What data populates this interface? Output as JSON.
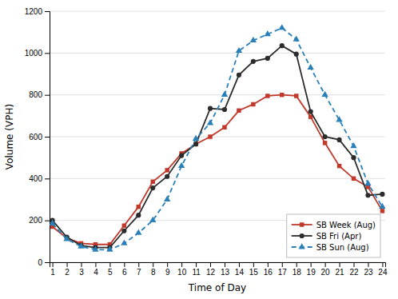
{
  "chart_data": {
    "type": "line",
    "xlabel": "Time of Day",
    "ylabel": "Volume (VPH)",
    "x": [
      1,
      2,
      3,
      4,
      5,
      6,
      7,
      8,
      9,
      10,
      11,
      12,
      13,
      14,
      15,
      16,
      17,
      18,
      19,
      20,
      21,
      22,
      23,
      24
    ],
    "series": [
      {
        "name": "SB Week (Aug)",
        "color": "#c0392b",
        "marker": "square",
        "line_style": "solid",
        "values": [
          170,
          115,
          90,
          85,
          85,
          175,
          265,
          385,
          440,
          520,
          565,
          600,
          645,
          725,
          755,
          795,
          800,
          795,
          695,
          570,
          460,
          400,
          360,
          245
        ]
      },
      {
        "name": "SB Fri (Apr)",
        "color": "#2c2c2c",
        "marker": "circle",
        "line_style": "solid",
        "values": [
          200,
          120,
          80,
          70,
          70,
          150,
          225,
          355,
          410,
          510,
          565,
          735,
          730,
          895,
          960,
          975,
          1035,
          995,
          720,
          600,
          585,
          500,
          320,
          325
        ]
      },
      {
        "name": "SB Sun (Aug)",
        "color": "#2980b9",
        "marker": "triangle",
        "line_style": "dashed",
        "values": [
          185,
          110,
          75,
          60,
          60,
          90,
          140,
          200,
          300,
          460,
          590,
          665,
          800,
          1010,
          1060,
          1090,
          1120,
          1065,
          930,
          800,
          680,
          555,
          375,
          265
        ]
      }
    ],
    "xlim": [
      0.8,
      24.2
    ],
    "xticks": [
      1,
      2,
      3,
      4,
      5,
      6,
      7,
      8,
      9,
      10,
      11,
      12,
      13,
      14,
      15,
      16,
      17,
      18,
      19,
      20,
      21,
      22,
      23,
      24
    ],
    "ylim": [
      0,
      1200
    ],
    "yticks": [
      0,
      200,
      400,
      600,
      800,
      1000,
      1200
    ],
    "grid": true,
    "legend": "lower right"
  }
}
